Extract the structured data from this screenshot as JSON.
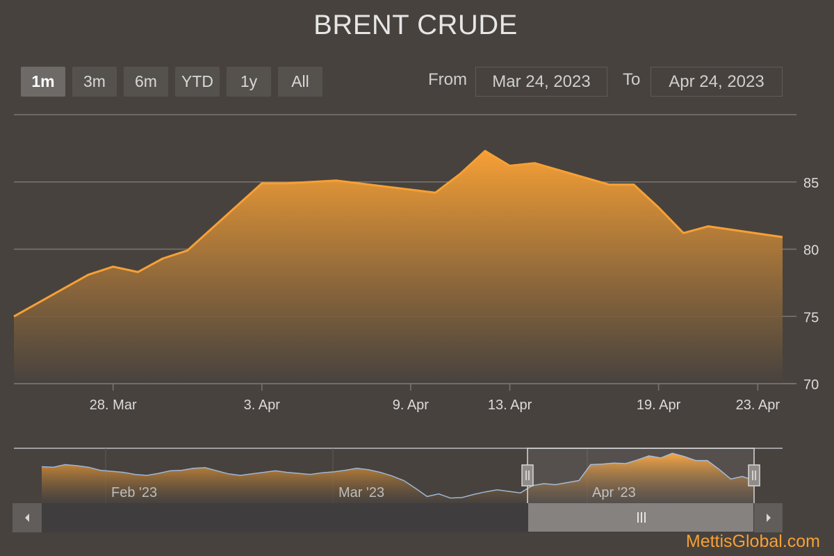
{
  "title": "BRENT CRUDE",
  "range_selector": {
    "buttons": [
      "1m",
      "3m",
      "6m",
      "YTD",
      "1y",
      "All"
    ],
    "active": "1m",
    "from_label": "From",
    "from_value": "Mar 24, 2023",
    "to_label": "To",
    "to_value": "Apr 24, 2023"
  },
  "credit": "MettisGlobal.com",
  "colors": {
    "background": "#47423e",
    "series_line": "#f7a035",
    "navigator_line": "#9fb6d6",
    "grid": "#7a7672"
  },
  "icons": {
    "scroll_left": "left-arrow-icon",
    "scroll_right": "right-arrow-icon",
    "scroll_grip": "grip-icon",
    "handle": "handle-icon"
  },
  "navigator": {
    "tick_labels": [
      "Feb '23",
      "Mar '23",
      "Apr '23"
    ],
    "overview_values": [
      83.6,
      83.5,
      84,
      83.8,
      83.5,
      82.9,
      82.7,
      82.5,
      82.1,
      81.9,
      82.3,
      82.8,
      82.9,
      83.3,
      83.4,
      82.8,
      82.2,
      81.9,
      82.2,
      82.5,
      82.8,
      82.5,
      82.3,
      82.1,
      82.4,
      82.6,
      82.9,
      83.3,
      83,
      82.5,
      81.8,
      80.9,
      79.4,
      77.8,
      78.3,
      77.5,
      77.6,
      78.2,
      78.7,
      79.1,
      78.8,
      78.5,
      79.9,
      80.3,
      80.1,
      80.5,
      80.9,
      84,
      84.1,
      84.3,
      84.2,
      84.9,
      85.7,
      85.3,
      86.2,
      85.6,
      84.8,
      84.8,
      83.1,
      81.2,
      81.7,
      80.9
    ]
  },
  "chart_data": {
    "type": "area",
    "title": "BRENT CRUDE",
    "x": [
      "2023-03-24",
      "2023-03-27",
      "2023-03-28",
      "2023-03-29",
      "2023-03-30",
      "2023-03-31",
      "2023-04-03",
      "2023-04-04",
      "2023-04-05",
      "2023-04-06",
      "2023-04-10",
      "2023-04-11",
      "2023-04-12",
      "2023-04-13",
      "2023-04-14",
      "2023-04-17",
      "2023-04-18",
      "2023-04-19",
      "2023-04-20",
      "2023-04-21",
      "2023-04-24"
    ],
    "values": [
      75.0,
      78.1,
      78.7,
      78.3,
      79.3,
      79.9,
      84.9,
      84.9,
      85.0,
      85.1,
      84.2,
      85.6,
      87.3,
      86.2,
      86.4,
      84.8,
      84.8,
      83.1,
      81.2,
      81.7,
      80.9
    ],
    "x_tick_labels": [
      "28. Mar",
      "3. Apr",
      "9. Apr",
      "13. Apr",
      "19. Apr",
      "23. Apr"
    ],
    "x_ticks": [
      "2023-03-28",
      "2023-04-03",
      "2023-04-09",
      "2023-04-13",
      "2023-04-19",
      "2023-04-23"
    ],
    "y_ticks": [
      70,
      75,
      80,
      85
    ],
    "ylim": [
      70,
      90
    ],
    "y_axis_position": "right",
    "grid": true,
    "legend": "none"
  }
}
